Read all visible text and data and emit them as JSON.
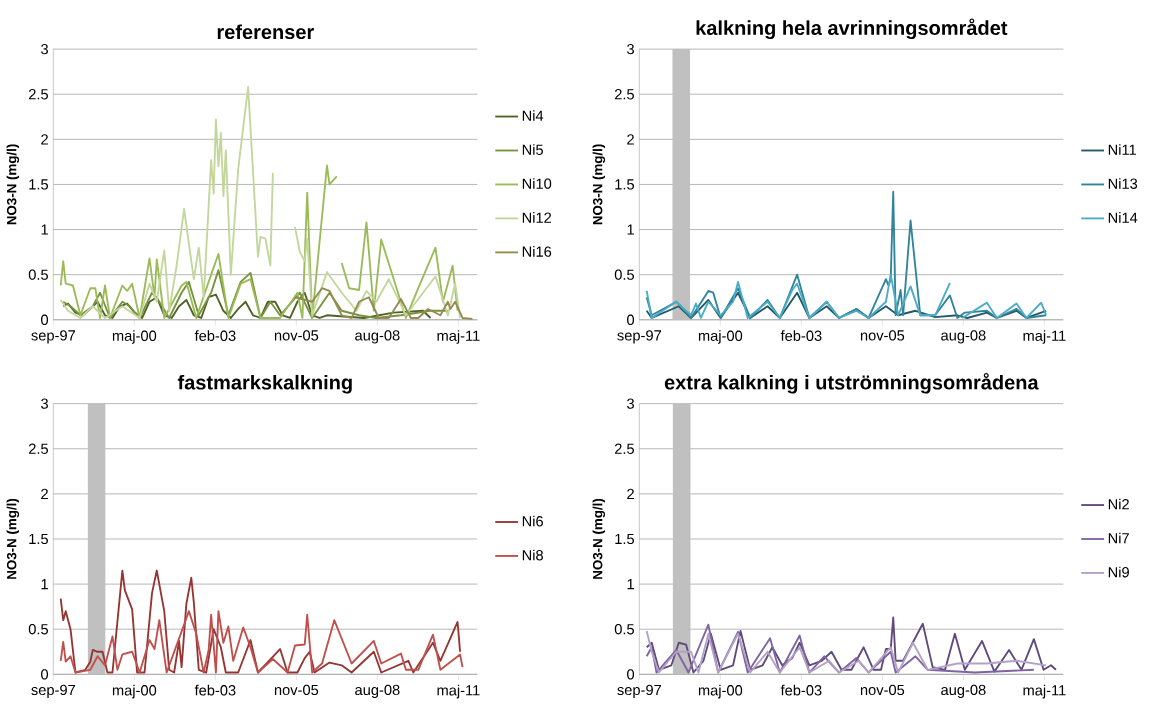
{
  "chart_data": [
    {
      "type": "line",
      "title": "referenser",
      "ylabel": "NO3-N (mg/l)",
      "grid": "y",
      "legend": "right",
      "xlim": [
        "1997-09-01",
        "2011-12-31"
      ],
      "xticks": [
        {
          "value": "1997-09-01",
          "label": "sep-97"
        },
        {
          "value": "2000-05-28",
          "label": "maj-00"
        },
        {
          "value": "2003-02-22",
          "label": "feb-03"
        },
        {
          "value": "2005-11-18",
          "label": "nov-05"
        },
        {
          "value": "2008-08-14",
          "label": "aug-08"
        },
        {
          "value": "2011-05-11",
          "label": "maj-11"
        }
      ],
      "ylim": [
        0,
        3
      ],
      "yticks": [
        0,
        0.5,
        1,
        1.5,
        2,
        2.5,
        3
      ],
      "series": [
        {
          "name": "Ni4",
          "color": "#4f6228",
          "x": [
            "1998-01",
            "1998-03",
            "1998-06",
            "1998-09",
            "1998-12",
            "1999-03",
            "1999-06",
            "1999-09",
            "1999-12",
            "2000-03",
            "2000-06",
            "2000-09",
            "2000-12",
            "2001-03",
            "2001-06",
            "2001-09",
            "2001-12",
            "2002-03",
            "2002-06",
            "2002-09",
            "2002-12",
            "2003-03",
            "2003-06",
            "2003-09",
            "2003-12",
            "2004-03",
            "2004-06",
            "2004-09",
            "2004-12",
            "2005-03",
            "2005-06",
            "2005-09",
            "2005-12",
            "2006-03",
            "2006-06",
            "2006-09",
            "2006-12",
            "2008-03",
            "2009-03",
            "2010-03",
            "2010-06"
          ],
          "values": [
            0.15,
            0.18,
            0.08,
            0.05,
            0.12,
            0.2,
            0.05,
            0.02,
            0.15,
            0.18,
            0.08,
            0.02,
            0.2,
            0.25,
            0.05,
            0.02,
            0.15,
            0.22,
            0.05,
            0.02,
            0.25,
            0.28,
            0.1,
            0.02,
            0.12,
            0.2,
            0.05,
            0.02,
            0.2,
            0.2,
            0.05,
            0.02,
            0.2,
            0.3,
            0.05,
            0.02,
            0.05,
            0.02,
            0.08,
            0.1,
            0.02
          ]
        },
        {
          "name": "Ni5",
          "color": "#77933c",
          "x": [
            "1998-01",
            "1998-04",
            "1998-08",
            "1999-01",
            "1999-04",
            "1999-08",
            "2000-01",
            "2000-04",
            "2000-08",
            "2001-01",
            "2001-04",
            "2001-08",
            "2002-01",
            "2002-04",
            "2002-08",
            "2003-01",
            "2003-04",
            "2003-08",
            "2004-01",
            "2004-05",
            "2004-09",
            "2005-01",
            "2005-05",
            "2006-01",
            "2006-06",
            "2007-01",
            "2007-06",
            "2008-01",
            "2008-08",
            "2009-06",
            "2010-06",
            "2011-01"
          ],
          "values": [
            0.2,
            0.15,
            0.05,
            0.15,
            0.3,
            0.02,
            0.2,
            0.15,
            0.02,
            0.3,
            0.2,
            0.02,
            0.3,
            0.42,
            0.05,
            0.3,
            0.55,
            0.05,
            0.42,
            0.52,
            0.02,
            0.2,
            0.05,
            0.3,
            0.02,
            0.3,
            0.1,
            0.05,
            0.02,
            0.05,
            0.1,
            0.1
          ]
        },
        {
          "name": "Ni10",
          "color": "#9bbb59",
          "x": [
            "1997-12",
            "1998-01",
            "1998-02",
            "1998-05",
            "1998-08",
            "1998-12",
            "1999-02",
            "1999-04",
            "1999-06",
            "1999-08",
            "2000-01",
            "2000-03",
            "2000-05",
            "2000-08",
            "2000-12",
            "2001-02",
            "2001-03",
            "2001-06",
            "2002-01",
            "2002-03",
            "2002-07",
            "2003-01",
            "2003-04",
            "2003-08",
            "2004-01",
            "2004-05",
            "2004-09",
            "2005-05",
            "2005-12",
            "2006-02",
            "2006-04",
            "2006-06",
            "2006-12",
            "2007-01",
            "2007-04",
            "2007-05",
            "2007-06",
            "2007-09",
            "2008-01",
            "2008-04",
            "2008-07",
            "2008-10",
            "2009-08",
            "2010-01",
            "2010-08",
            "2010-11",
            "2011-03",
            "2011-05"
          ],
          "values": [
            0.38,
            0.65,
            0.4,
            0.38,
            0.05,
            0.35,
            0.35,
            0.02,
            0.38,
            0.02,
            0.38,
            0.32,
            0.4,
            0.02,
            0.68,
            0.25,
            0.67,
            0.02,
            0.38,
            0.42,
            0.02,
            0.5,
            0.73,
            0.02,
            0.4,
            0.45,
            0.02,
            0.02,
            0.3,
            0.02,
            1.41,
            0.02,
            1.71,
            1.5,
            1.59,
            null,
            0.63,
            0.35,
            0.33,
            1.08,
            0.1,
            0.89,
            0.02,
            0.35,
            0.8,
            0.2,
            0.6,
            0.1
          ]
        },
        {
          "name": "Ni12",
          "color": "#c3d69b",
          "x": [
            "1997-12",
            "1998-03",
            "1998-08",
            "1999-01",
            "1999-06",
            "2000-01",
            "2000-08",
            "2000-12",
            "2001-03",
            "2001-06",
            "2001-08",
            "2001-11",
            "2002-02",
            "2002-06",
            "2002-08",
            "2002-10",
            "2003-01",
            "2003-02",
            "2003-03",
            "2003-04",
            "2003-05",
            "2003-06",
            "2003-07",
            "2003-09",
            "2003-12",
            "2004-04",
            "2004-08",
            "2004-09",
            "2004-11",
            "2005-01",
            "2005-02",
            "2005-06",
            "2005-11",
            "2006-01",
            "2006-03",
            "2006-04",
            "2006-06",
            "2006-12",
            "2007-06",
            "2007-12",
            "2008-04",
            "2008-08",
            "2009-01",
            "2009-08",
            "2010-08",
            "2011-01",
            "2011-04",
            "2011-06"
          ],
          "values": [
            0.22,
            0.1,
            0.02,
            0.15,
            0.02,
            0.15,
            0.02,
            0.4,
            0.2,
            0.77,
            0.1,
            0.6,
            1.23,
            0.45,
            0.8,
            0.25,
            1.77,
            1.4,
            2.22,
            1.7,
            2.07,
            1.37,
            1.88,
            0.5,
            1.67,
            2.58,
            0.7,
            0.92,
            0.9,
            0.6,
            1.63,
            null,
            1.03,
            0.75,
            0.65,
            0.9,
            0.05,
            0.53,
            0.3,
            0.1,
            0.32,
            0.2,
            0.45,
            0.05,
            0.48,
            0.05,
            0.4,
            0.02
          ]
        },
        {
          "name": "Ni16",
          "color": "#948a54",
          "x": [
            "2005-11",
            "2006-06",
            "2006-10",
            "2007-01",
            "2007-06",
            "2007-10",
            "2008-01",
            "2008-05",
            "2008-09",
            "2009-01",
            "2009-06",
            "2009-10",
            "2010-01",
            "2010-05",
            "2010-10",
            "2011-01",
            "2011-02",
            "2011-04",
            "2011-07",
            "2011-11"
          ],
          "values": [
            0.25,
            0.2,
            0.35,
            0.32,
            0.05,
            0.02,
            0.2,
            0.25,
            0.02,
            0.02,
            0.23,
            0.02,
            0.02,
            0.12,
            0.05,
            0.2,
            0.12,
            0.2,
            0.02,
            0.01
          ]
        }
      ]
    },
    {
      "type": "line",
      "title": "kalkning hela avrinningsområdet",
      "ylabel": "NO3-N (mg/l)",
      "grid": "y",
      "legend": "right",
      "xlim": [
        "1997-09-01",
        "2011-12-31"
      ],
      "xticks": [
        {
          "value": "1997-09-01",
          "label": "sep-97"
        },
        {
          "value": "2000-05-28",
          "label": "maj-00"
        },
        {
          "value": "2003-02-22",
          "label": "feb-03"
        },
        {
          "value": "2005-11-18",
          "label": "nov-05"
        },
        {
          "value": "2008-08-14",
          "label": "aug-08"
        },
        {
          "value": "2011-05-11",
          "label": "maj-11"
        }
      ],
      "ylim": [
        0,
        3
      ],
      "yticks": [
        0,
        0.5,
        1,
        1.5,
        2,
        2.5,
        3
      ],
      "bands": [
        {
          "axis": "x",
          "from": "1998-10-15",
          "to": "1999-05-20",
          "color": "#c0c0c0"
        }
      ],
      "series": [
        {
          "name": "Ni11",
          "color": "#215968",
          "x": [
            "1997-12",
            "1998-02",
            "1999-01",
            "1999-06",
            "2000-01",
            "2000-06",
            "2001-01",
            "2001-06",
            "2002-01",
            "2002-06",
            "2003-01",
            "2003-06",
            "2004-01",
            "2004-06",
            "2005-01",
            "2005-06",
            "2006-01",
            "2006-06",
            "2007-01",
            "2007-09",
            "2008-06",
            "2008-10",
            "2009-06",
            "2009-10",
            "2010-06",
            "2010-10",
            "2011-06"
          ],
          "values": [
            0.1,
            0.02,
            0.15,
            0.02,
            0.22,
            0.02,
            0.3,
            0.02,
            0.15,
            0.02,
            0.3,
            0.02,
            0.15,
            0.02,
            0.12,
            0.02,
            0.15,
            0.05,
            0.1,
            0.03,
            0.05,
            0.02,
            0.08,
            0.02,
            0.1,
            0.02,
            0.1
          ]
        },
        {
          "name": "Ni13",
          "color": "#31849b",
          "x": [
            "1997-12",
            "1998-02",
            "1998-12",
            "1999-06",
            "2000-01",
            "2000-03",
            "2000-06",
            "2001-01",
            "2001-06",
            "2002-01",
            "2002-06",
            "2003-01",
            "2003-06",
            "2004-01",
            "2004-06",
            "2005-01",
            "2005-06",
            "2006-01",
            "2006-02",
            "2006-03",
            "2006-04",
            "2006-05",
            "2006-07",
            "2006-08",
            "2006-11",
            "2007-03",
            "2007-09",
            "2008-03",
            "2008-06",
            "2008-09",
            "2009-06",
            "2009-10",
            "2010-06",
            "2010-10",
            "2011-06"
          ],
          "values": [
            0.25,
            0.05,
            0.2,
            0.02,
            0.32,
            0.3,
            0.02,
            0.35,
            0.02,
            0.22,
            0.02,
            0.5,
            0.02,
            0.2,
            0.02,
            0.12,
            0.02,
            0.45,
            0.38,
            0.45,
            1.42,
            0.05,
            0.33,
            0.05,
            1.1,
            0.05,
            0.05,
            0.27,
            0.02,
            0.08,
            0.1,
            0.02,
            0.12,
            0.02,
            0.05
          ]
        },
        {
          "name": "Ni14",
          "color": "#4bacc6",
          "x": [
            "1997-12",
            "1998-02",
            "1998-12",
            "1999-06",
            "1999-08",
            "1999-10",
            "2000-01",
            "2000-06",
            "2000-11",
            "2001-01",
            "2001-05",
            "2002-01",
            "2002-06",
            "2002-11",
            "2003-01",
            "2003-06",
            "2004-01",
            "2004-06",
            "2005-01",
            "2005-06",
            "2006-01",
            "2006-03",
            "2006-06",
            "2006-11",
            "2007-03",
            "2007-09",
            "2008-03",
            "2008-06",
            "2008-08",
            "2009-06",
            "2009-10",
            "2010-06",
            "2010-10",
            "2011-04",
            "2011-06"
          ],
          "values": [
            0.32,
            0.02,
            0.2,
            0.05,
            0.18,
            0.02,
            0.2,
            0.05,
            0.2,
            0.42,
            0.02,
            0.2,
            0.02,
            0.33,
            0.4,
            0.02,
            0.2,
            0.02,
            0.1,
            0.02,
            0.2,
            0.5,
            0.05,
            0.37,
            0.05,
            0.05,
            0.41,
            null,
            0.02,
            0.19,
            0.02,
            0.18,
            0.02,
            0.19,
            0.05
          ]
        }
      ]
    },
    {
      "type": "line",
      "title": "fastmarkskalkning",
      "ylabel": "NO3-N (mg/l)",
      "grid": "y",
      "legend": "right",
      "xlim": [
        "1997-09-01",
        "2011-12-31"
      ],
      "xticks": [
        {
          "value": "1997-09-01",
          "label": "sep-97"
        },
        {
          "value": "2000-05-28",
          "label": "maj-00"
        },
        {
          "value": "2003-02-22",
          "label": "feb-03"
        },
        {
          "value": "2005-11-18",
          "label": "nov-05"
        },
        {
          "value": "2008-08-14",
          "label": "aug-08"
        },
        {
          "value": "2011-05-11",
          "label": "maj-11"
        }
      ],
      "ylim": [
        0,
        3
      ],
      "yticks": [
        0,
        0.5,
        1,
        1.5,
        2,
        2.5,
        3
      ],
      "bands": [
        {
          "axis": "x",
          "from": "1998-11-01",
          "to": "1999-06-05",
          "color": "#c0c0c0"
        }
      ],
      "series": [
        {
          "name": "Ni6",
          "color": "#943634",
          "x": [
            "1997-12",
            "1998-01",
            "1998-02",
            "1998-04",
            "1998-06",
            "1998-10",
            "1998-12",
            "1999-01",
            "1999-03",
            "1999-05",
            "1999-07",
            "1999-09",
            "2000-01",
            "2000-02",
            "2000-05",
            "2000-07",
            "2000-10",
            "2001-01",
            "2001-03",
            "2001-06",
            "2001-08",
            "2001-10",
            "2001-12",
            "2002-01",
            "2002-03",
            "2002-05",
            "2002-06",
            "2002-08",
            "2002-11",
            "2003-02",
            "2003-05",
            "2003-07",
            "2003-12",
            "2004-05",
            "2004-08",
            "2005-05",
            "2005-08",
            "2005-12",
            "2006-03",
            "2006-05",
            "2006-07",
            "2007-01",
            "2007-06",
            "2007-10",
            "2008-07",
            "2008-10",
            "2009-09",
            "2009-11",
            "2010-07",
            "2010-10",
            "2011-05",
            "2011-06"
          ],
          "values": [
            0.84,
            0.6,
            0.7,
            0.5,
            0.02,
            0.05,
            0.14,
            0.27,
            0.25,
            0.25,
            0.02,
            0.02,
            1.15,
            0.93,
            0.72,
            0.02,
            0.02,
            0.9,
            1.15,
            0.7,
            0.05,
            0.02,
            0.37,
            0.08,
            0.78,
            1.07,
            0.8,
            0.05,
            0.02,
            0.5,
            0.3,
            0.02,
            0.02,
            0.38,
            0.02,
            0.28,
            0.02,
            0.02,
            0.18,
            0.25,
            0.02,
            0.13,
            0.1,
            0.02,
            0.25,
            0.02,
            0.15,
            0.02,
            0.35,
            0.15,
            0.58,
            0.25
          ]
        },
        {
          "name": "Ni8",
          "color": "#c0504d",
          "x": [
            "1997-12",
            "1998-01",
            "1998-02",
            "1998-04",
            "1998-06",
            "1998-12",
            "1999-03",
            "1999-06",
            "1999-09",
            "1999-11",
            "2000-01",
            "2000-05",
            "2000-08",
            "2000-12",
            "2001-02",
            "2001-04",
            "2001-07",
            "2002-02",
            "2002-04",
            "2002-07",
            "2002-10",
            "2002-12",
            "2003-01",
            "2003-03",
            "2003-04",
            "2003-06",
            "2003-08",
            "2003-10",
            "2004-02",
            "2004-05",
            "2004-08",
            "2005-02",
            "2005-08",
            "2005-11",
            "2006-03",
            "2006-04",
            "2006-06",
            "2006-10",
            "2007-03",
            "2007-10",
            "2008-07",
            "2008-10",
            "2009-06",
            "2009-08",
            "2010-01",
            "2010-07",
            "2010-10",
            "2011-06",
            "2011-07"
          ],
          "values": [
            0.15,
            0.36,
            0.14,
            0.2,
            0.02,
            0.05,
            0.2,
            0.1,
            0.42,
            0.05,
            0.22,
            0.25,
            0.02,
            0.38,
            0.28,
            0.6,
            0.02,
            0.55,
            0.7,
            0.45,
            0.02,
            0.27,
            0.66,
            0.02,
            0.7,
            0.35,
            0.53,
            0.15,
            0.52,
            0.3,
            0.02,
            0.17,
            0.02,
            0.32,
            0.33,
            0.66,
            0.02,
            0.12,
            0.6,
            0.12,
            0.37,
            0.12,
            0.23,
            0.05,
            0.05,
            0.44,
            0.05,
            0.22,
            0.08
          ]
        }
      ]
    },
    {
      "type": "line",
      "title": "extra kalkning i utströmningsområdena",
      "ylabel": "NO3-N (mg/l)",
      "grid": "y",
      "legend": "right",
      "xlim": [
        "1997-09-01",
        "2011-12-31"
      ],
      "xticks": [
        {
          "value": "1997-09-01",
          "label": "sep-97"
        },
        {
          "value": "2000-05-28",
          "label": "maj-00"
        },
        {
          "value": "2003-02-22",
          "label": "feb-03"
        },
        {
          "value": "2005-11-18",
          "label": "nov-05"
        },
        {
          "value": "2008-08-14",
          "label": "aug-08"
        },
        {
          "value": "2011-05-11",
          "label": "maj-11"
        }
      ],
      "ylim": [
        0,
        3
      ],
      "yticks": [
        0,
        0.5,
        1,
        1.5,
        2,
        2.5,
        3
      ],
      "bands": [
        {
          "axis": "x",
          "from": "1998-10-20",
          "to": "1999-05-25",
          "color": "#c0c0c0"
        }
      ],
      "series": [
        {
          "name": "Ni2",
          "color": "#604a7b",
          "x": [
            "1997-12",
            "1998-02",
            "1998-05",
            "1998-10",
            "1999-01",
            "1999-04",
            "1999-07",
            "1999-11",
            "2000-02",
            "2000-06",
            "2000-11",
            "2001-02",
            "2001-06",
            "2001-11",
            "2002-03",
            "2002-07",
            "2002-11",
            "2003-02",
            "2003-06",
            "2003-11",
            "2004-03",
            "2004-07",
            "2004-11",
            "2005-04",
            "2005-08",
            "2005-11",
            "2006-01",
            "2006-03",
            "2006-04",
            "2006-05",
            "2006-08",
            "2007-04",
            "2007-08",
            "2008-01",
            "2008-05",
            "2008-09",
            "2009-04",
            "2009-09",
            "2010-03",
            "2010-08",
            "2011-01",
            "2011-05",
            "2011-08",
            "2011-10"
          ],
          "values": [
            0.3,
            0.35,
            0.05,
            0.1,
            0.35,
            0.33,
            0.02,
            0.15,
            0.45,
            0.05,
            0.1,
            0.48,
            0.05,
            0.1,
            0.3,
            0.1,
            0.18,
            0.35,
            0.1,
            0.15,
            0.25,
            0.05,
            0.05,
            0.3,
            0.05,
            0.05,
            0.28,
            0.28,
            0.63,
            0.15,
            0.15,
            0.56,
            0.08,
            0.05,
            0.45,
            0.05,
            0.37,
            0.03,
            0.27,
            0.05,
            0.39,
            0.05,
            0.1,
            0.05
          ]
        },
        {
          "name": "Ni7",
          "color": "#8064a2",
          "x": [
            "1997-12",
            "1998-02",
            "1998-04",
            "1998-12",
            "1999-05",
            "2000-01",
            "2000-05",
            "2001-01",
            "2001-05",
            "2002-02",
            "2002-06",
            "2003-02",
            "2003-06",
            "2003-12",
            "2004-06",
            "2005-01",
            "2005-06",
            "2006-03",
            "2006-05",
            "2007-01",
            "2007-06",
            "2009-01",
            "2011-01"
          ],
          "values": [
            0.2,
            0.3,
            0.02,
            0.27,
            0.02,
            0.55,
            0.02,
            0.47,
            0.02,
            0.4,
            0.02,
            0.43,
            0.02,
            0.2,
            0.02,
            0.18,
            0.02,
            0.25,
            0.02,
            0.2,
            0.05,
            0.02,
            0.05
          ]
        },
        {
          "name": "Ni9",
          "color": "#b3a2c7",
          "x": [
            "1997-12",
            "1998-02",
            "1998-05",
            "1998-12",
            "1999-06",
            "1999-09",
            "2000-01",
            "2000-05",
            "2001-01",
            "2001-06",
            "2002-01",
            "2002-06",
            "2003-02",
            "2003-06",
            "2004-02",
            "2004-06",
            "2005-02",
            "2005-06",
            "2006-03",
            "2006-06",
            "2006-12",
            "2007-06",
            "2008-06",
            "2009-06",
            "2010-06",
            "2011-06"
          ],
          "values": [
            0.48,
            0.25,
            0.02,
            0.25,
            0.25,
            0.02,
            0.45,
            0.02,
            0.45,
            0.02,
            0.25,
            0.02,
            0.3,
            0.02,
            0.15,
            0.02,
            0.15,
            0.02,
            0.3,
            0.02,
            0.35,
            0.05,
            0.12,
            0.12,
            0.15,
            0.1
          ]
        }
      ]
    }
  ]
}
